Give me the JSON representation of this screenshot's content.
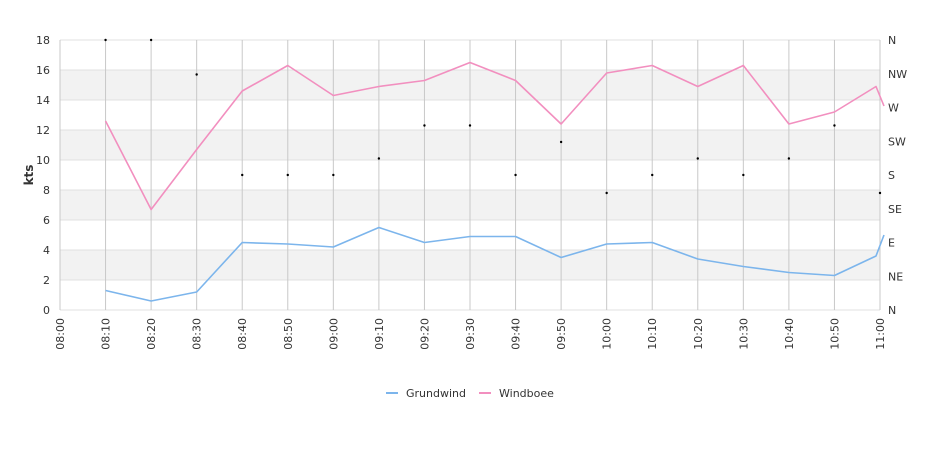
{
  "chart_data": {
    "type": "line",
    "ylabel": "kts",
    "ylim": [
      0,
      18
    ],
    "y_ticks": [
      "0",
      "2",
      "4",
      "6",
      "8",
      "10",
      "12",
      "14",
      "16",
      "18"
    ],
    "x_tick_labels": [
      "08:00",
      "08:10",
      "08:20",
      "08:30",
      "08:40",
      "08:50",
      "09:00",
      "09:10",
      "09:20",
      "09:30",
      "09:40",
      "09:50",
      "10:00",
      "10:10",
      "10:20",
      "10:30",
      "10:40",
      "10:50",
      "11:00"
    ],
    "right_axis_labels": [
      "N",
      "NW",
      "W",
      "SW",
      "S",
      "SE",
      "E",
      "NE",
      "N"
    ],
    "grid": true,
    "legend_position": "bottom",
    "series": [
      {
        "name": "Grundwind",
        "color": "#7cb5ec",
        "points": [
          [
            "08:10",
            1.3
          ],
          [
            "08:20",
            0.6
          ],
          [
            "08:30",
            1.2
          ],
          [
            "08:40",
            4.5
          ],
          [
            "08:50",
            4.4
          ],
          [
            "09:00",
            4.2
          ],
          [
            "09:10",
            5.5
          ],
          [
            "09:20",
            4.5
          ],
          [
            "09:30",
            4.9
          ],
          [
            "09:40",
            4.9
          ],
          [
            "09:50",
            3.5
          ],
          [
            "10:00",
            4.4
          ],
          [
            "10:10",
            4.5
          ],
          [
            "10:20",
            3.4
          ],
          [
            "10:30",
            2.9
          ],
          [
            "10:40",
            2.5
          ],
          [
            "10:50",
            2.3
          ],
          [
            "11:00",
            3.6
          ],
          [
            "11:00",
            5.0
          ]
        ]
      },
      {
        "name": "Windboee",
        "color": "#f28fbf",
        "points": [
          [
            "08:10",
            12.6
          ],
          [
            "08:20",
            6.7
          ],
          [
            "08:30",
            10.7
          ],
          [
            "08:40",
            14.6
          ],
          [
            "08:50",
            16.3
          ],
          [
            "09:00",
            14.3
          ],
          [
            "09:10",
            14.9
          ],
          [
            "09:20",
            15.3
          ],
          [
            "09:30",
            16.5
          ],
          [
            "09:40",
            15.3
          ],
          [
            "09:50",
            12.4
          ],
          [
            "10:00",
            15.8
          ],
          [
            "10:10",
            16.3
          ],
          [
            "10:20",
            14.9
          ],
          [
            "10:30",
            16.3
          ],
          [
            "10:40",
            12.4
          ],
          [
            "10:50",
            13.2
          ],
          [
            "11:00",
            14.9
          ],
          [
            "11:00",
            13.6
          ]
        ]
      },
      {
        "name": "",
        "type": "scatter",
        "color": "#000000",
        "points": [
          [
            "08:10",
            18.0
          ],
          [
            "08:20",
            18.0
          ],
          [
            "08:30",
            15.7
          ],
          [
            "08:40",
            9.0
          ],
          [
            "08:50",
            9.0
          ],
          [
            "09:00",
            9.0
          ],
          [
            "09:10",
            10.1
          ],
          [
            "09:20",
            12.3
          ],
          [
            "09:30",
            12.3
          ],
          [
            "09:40",
            9.0
          ],
          [
            "09:50",
            11.2
          ],
          [
            "10:00",
            7.8
          ],
          [
            "10:10",
            9.0
          ],
          [
            "10:20",
            10.1
          ],
          [
            "10:30",
            9.0
          ],
          [
            "10:40",
            10.1
          ],
          [
            "10:50",
            12.3
          ],
          [
            "11:00",
            7.8
          ]
        ]
      }
    ]
  }
}
